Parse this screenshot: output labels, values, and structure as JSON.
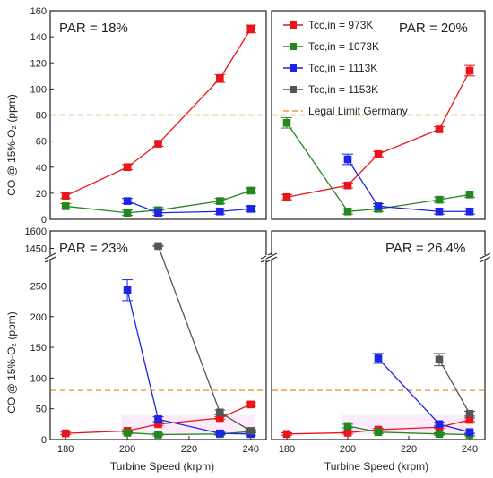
{
  "figure": {
    "y_axis_label": "CO @ 15%-O₂ (ppm)",
    "x_axis_label": "Turbine Speed (krpm)"
  },
  "legend": {
    "entries": [
      {
        "label": "Tcc,in = 973K",
        "color": "#e8151b"
      },
      {
        "label": "Tcc,in = 1073K",
        "color": "#23871e"
      },
      {
        "label": "Tcc,in = 1113K",
        "color": "#1c24e6"
      },
      {
        "label": "Tcc,in = 1153K",
        "color": "#555555"
      }
    ],
    "legal_limit_label": "Legal Limit Germany",
    "legal_limit_color": "#e89b3a"
  },
  "chart_data": [
    {
      "type": "line",
      "panel": "top-left",
      "annotation": "PAR = 18%",
      "xlim": [
        175,
        245
      ],
      "ylim": [
        0,
        160
      ],
      "yticks": [
        0,
        20,
        40,
        60,
        80,
        100,
        120,
        140,
        160
      ],
      "legal_limit": 80,
      "series": [
        {
          "name": "Tcc,in = 973K",
          "x": [
            180,
            200,
            210,
            230,
            240
          ],
          "y": [
            18,
            40,
            58,
            108,
            146
          ],
          "err": [
            2,
            2,
            2,
            3,
            3
          ]
        },
        {
          "name": "Tcc,in = 1073K",
          "x": [
            180,
            200,
            210,
            230,
            240
          ],
          "y": [
            10,
            5,
            7,
            14,
            22
          ],
          "err": [
            2,
            2,
            2,
            2,
            2
          ]
        },
        {
          "name": "Tcc,in = 1113K",
          "x": [
            200,
            210,
            230,
            240
          ],
          "y": [
            14,
            5,
            6,
            8
          ],
          "err": [
            2,
            2,
            2,
            2
          ]
        }
      ]
    },
    {
      "type": "line",
      "panel": "top-right",
      "annotation": "PAR = 20%",
      "xlim": [
        175,
        245
      ],
      "ylim": [
        0,
        160
      ],
      "legal_limit": 80,
      "series": [
        {
          "name": "Tcc,in = 973K",
          "x": [
            180,
            200,
            210,
            230,
            240
          ],
          "y": [
            17,
            26,
            50,
            69,
            114
          ],
          "err": [
            2,
            2,
            2,
            2,
            4
          ]
        },
        {
          "name": "Tcc,in = 1073K",
          "x": [
            180,
            200,
            210,
            230,
            240
          ],
          "y": [
            74,
            6,
            8,
            15,
            19
          ],
          "err": [
            4,
            2,
            2,
            2,
            2
          ]
        },
        {
          "name": "Tcc,in = 1113K",
          "x": [
            200,
            210,
            230,
            240
          ],
          "y": [
            46,
            10,
            6,
            6
          ],
          "err": [
            4,
            2,
            2,
            2
          ]
        }
      ]
    },
    {
      "type": "line",
      "panel": "bottom-left",
      "annotation": "PAR = 23%",
      "xlim": [
        175,
        245
      ],
      "ylim": [
        0,
        1600
      ],
      "broken_axis": {
        "lower": [
          0,
          290
        ],
        "upper": [
          1400,
          1600
        ]
      },
      "yticks": [
        0,
        50,
        100,
        150,
        200,
        250,
        1450,
        1600
      ],
      "xticks": [
        180,
        200,
        220,
        240
      ],
      "legal_limit": 80,
      "series": [
        {
          "name": "Tcc,in = 973K",
          "x": [
            180,
            200,
            210,
            230,
            240
          ],
          "y": [
            10,
            14,
            25,
            35,
            57
          ],
          "err": [
            2,
            2,
            2,
            2,
            3
          ]
        },
        {
          "name": "Tcc,in = 1073K",
          "x": [
            200,
            210,
            230,
            240
          ],
          "y": [
            11,
            8,
            9,
            13
          ],
          "err": [
            2,
            2,
            2,
            2
          ]
        },
        {
          "name": "Tcc,in = 1113K",
          "x": [
            200,
            210,
            230,
            240
          ],
          "y": [
            243,
            33,
            10,
            9
          ],
          "err": [
            17,
            4,
            2,
            2
          ]
        },
        {
          "name": "Tcc,in = 1153K",
          "x": [
            210,
            230,
            240
          ],
          "y": [
            1470,
            44,
            14
          ],
          "err": [
            5,
            4,
            2
          ]
        }
      ]
    },
    {
      "type": "line",
      "panel": "bottom-right",
      "annotation": "PAR = 26.4%",
      "xlim": [
        175,
        245
      ],
      "ylim": [
        0,
        1600
      ],
      "broken_axis": {
        "lower": [
          0,
          290
        ],
        "upper": [
          1400,
          1600
        ]
      },
      "xticks": [
        180,
        200,
        220,
        240
      ],
      "legal_limit": 80,
      "series": [
        {
          "name": "Tcc,in = 973K",
          "x": [
            180,
            200,
            210,
            230,
            240
          ],
          "y": [
            9,
            11,
            16,
            20,
            32
          ],
          "err": [
            2,
            2,
            2,
            2,
            3
          ]
        },
        {
          "name": "Tcc,in = 1073K",
          "x": [
            200,
            210,
            230,
            240
          ],
          "y": [
            22,
            12,
            9,
            8
          ],
          "err": [
            3,
            2,
            2,
            2
          ]
        },
        {
          "name": "Tcc,in = 1113K",
          "x": [
            210,
            230,
            240
          ],
          "y": [
            132,
            25,
            12
          ],
          "err": [
            8,
            3,
            2
          ]
        },
        {
          "name": "Tcc,in = 1153K",
          "x": [
            230,
            240
          ],
          "y": [
            130,
            42
          ],
          "err": [
            10,
            4
          ]
        }
      ]
    }
  ]
}
